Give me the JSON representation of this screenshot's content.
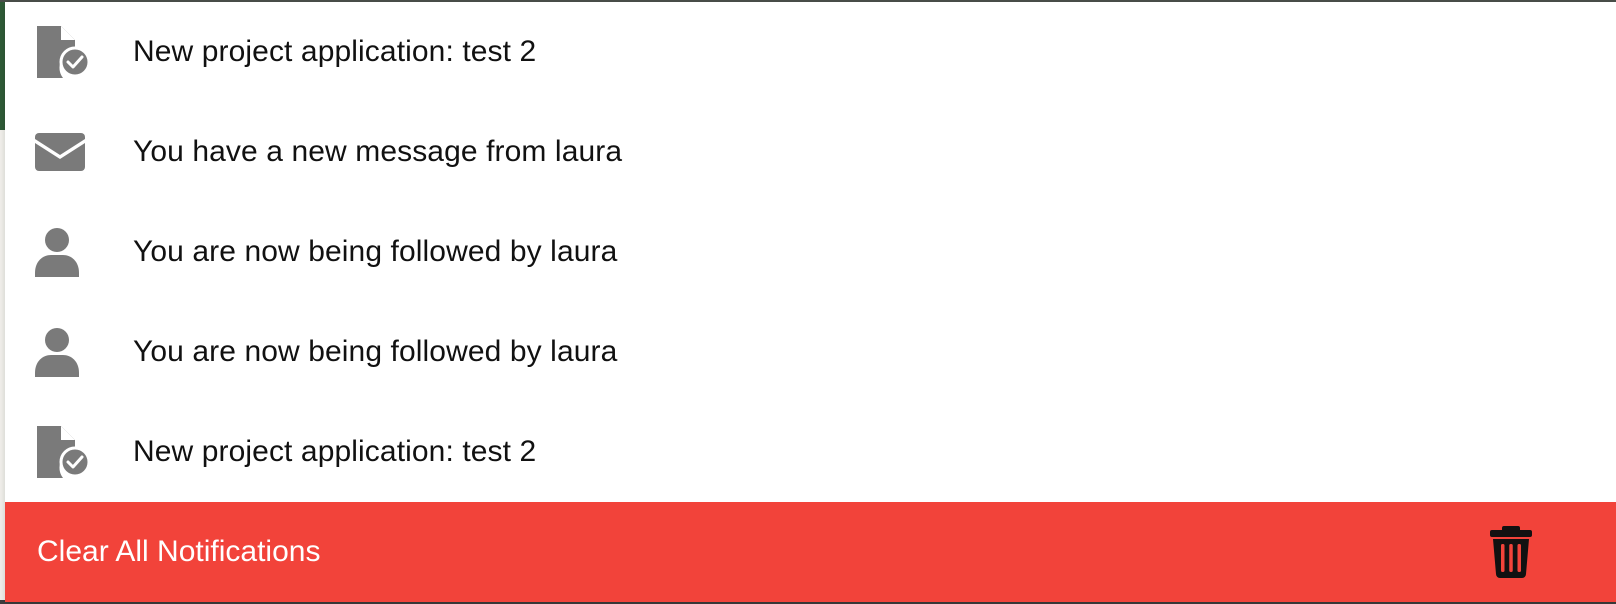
{
  "notifications": [
    {
      "icon": "file-check-icon",
      "text": "New project application: test 2"
    },
    {
      "icon": "envelope-icon",
      "text": "You have a new message from laura"
    },
    {
      "icon": "user-icon",
      "text": "You are now being followed by laura"
    },
    {
      "icon": "user-icon",
      "text": "You are now being followed by laura"
    },
    {
      "icon": "file-check-icon",
      "text": "New project application: test 2"
    }
  ],
  "footer": {
    "clear_label": "Clear All Notifications",
    "icon": "trash-icon"
  },
  "colors": {
    "icon_gray": "#7a7a7a",
    "danger": "#f2433a",
    "text": "#111111",
    "footer_text": "#ffffff"
  }
}
